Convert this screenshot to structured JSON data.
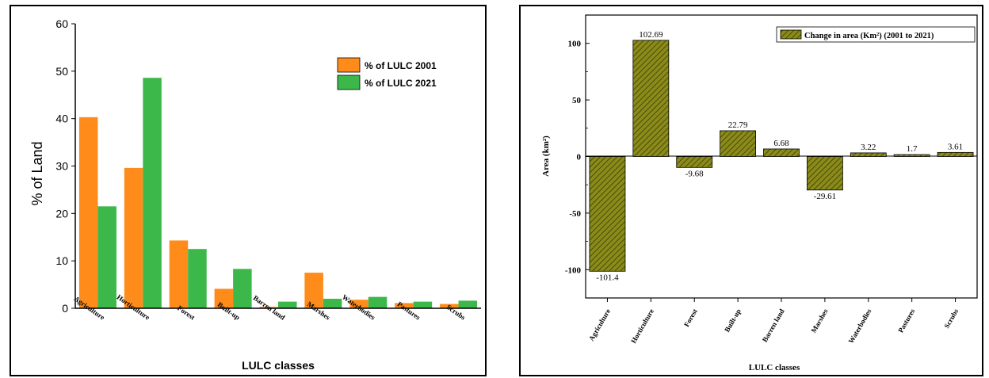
{
  "chart_data": [
    {
      "type": "bar",
      "title": "",
      "xlabel": "LULC classes",
      "ylabel": "% of Land",
      "ylim": [
        0,
        60
      ],
      "yticks": [
        0,
        10,
        20,
        30,
        40,
        50,
        60
      ],
      "categories": [
        "Agriculture",
        "Horticulture",
        "Forest",
        "Built-up",
        "Barren land",
        "Marshes",
        "Waterbodies",
        "Pastures",
        "Scrubs"
      ],
      "series": [
        {
          "name": "% of LULC 2001",
          "color": "#ff8c1a",
          "values": [
            40.3,
            29.6,
            14.3,
            4.1,
            0.3,
            7.5,
            1.8,
            1.1,
            0.9
          ]
        },
        {
          "name": "% of LULC 2021",
          "color": "#3cb84a",
          "values": [
            21.5,
            48.6,
            12.5,
            8.3,
            1.4,
            2.0,
            2.4,
            1.4,
            1.6
          ]
        }
      ],
      "legend_position": "top-right",
      "grid": false
    },
    {
      "type": "bar",
      "title": "",
      "xlabel": "LULC classes",
      "ylabel": "Area (km²)",
      "ylim": [
        -125,
        125
      ],
      "yticks": [
        -100,
        -50,
        0,
        50,
        100
      ],
      "categories": [
        "Agriculture",
        "Horticulture",
        "Forest",
        "Built-up",
        "Barren land",
        "Marshes",
        "Waterbodies",
        "Pastures",
        "Scrubs"
      ],
      "series": [
        {
          "name": "Change in area (Km²) (2001 to 2021)",
          "color": "#8b8b1a",
          "values": [
            -101.4,
            102.69,
            -9.68,
            22.79,
            6.68,
            -29.61,
            3.22,
            1.7,
            3.61
          ]
        }
      ],
      "data_labels": [
        "-101.4",
        "102.69",
        "-9.68",
        "22.79",
        "6.68",
        "-29.61",
        "3.22",
        "1.7",
        "3.61"
      ],
      "legend_position": "top-right",
      "grid": false
    }
  ]
}
